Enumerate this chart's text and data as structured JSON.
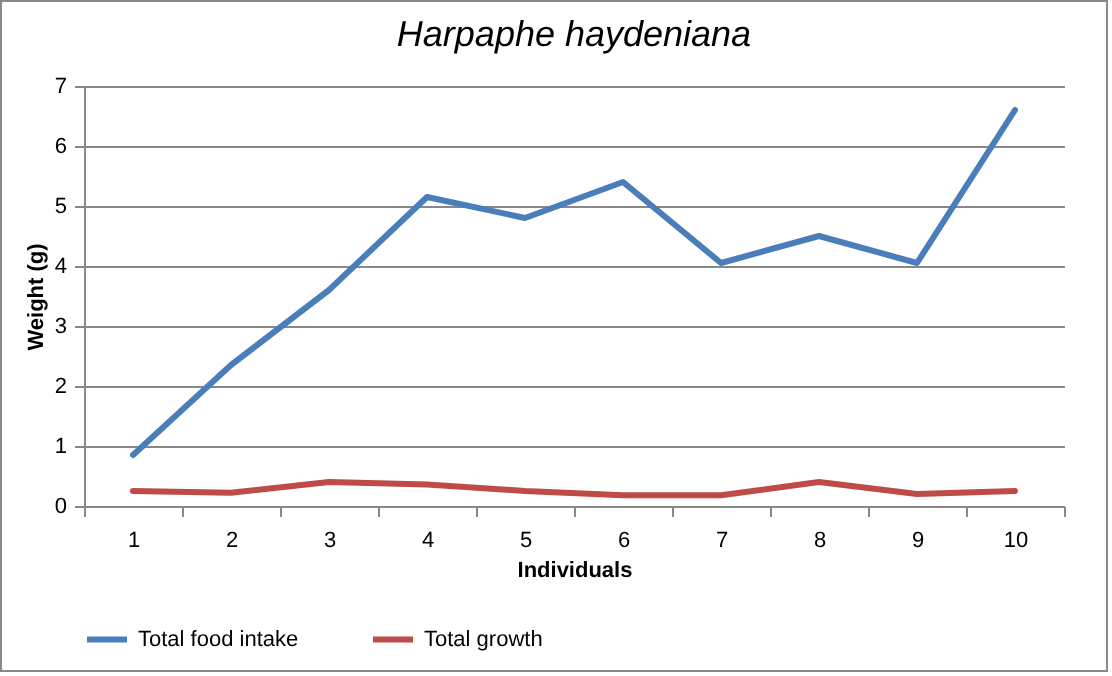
{
  "chart_data": {
    "type": "line",
    "title": "Harpaphe haydeniana",
    "xlabel": "Individuals",
    "ylabel": "Weight (g)",
    "categories": [
      "1",
      "2",
      "3",
      "4",
      "5",
      "6",
      "7",
      "8",
      "9",
      "10"
    ],
    "series": [
      {
        "name": "Total food intake",
        "color": "#4a7ebb",
        "values": [
          0.85,
          2.35,
          3.6,
          5.15,
          4.8,
          5.4,
          4.05,
          4.5,
          4.05,
          6.6
        ]
      },
      {
        "name": "Total growth",
        "color": "#be4b48",
        "values": [
          0.25,
          0.22,
          0.4,
          0.36,
          0.25,
          0.18,
          0.18,
          0.4,
          0.2,
          0.25
        ]
      }
    ],
    "ylim": [
      0,
      7
    ],
    "yticks": [
      0,
      1,
      2,
      3,
      4,
      5,
      6,
      7
    ],
    "grid": "y",
    "legend": "bottom",
    "marker": "none",
    "line_style": "solid"
  }
}
